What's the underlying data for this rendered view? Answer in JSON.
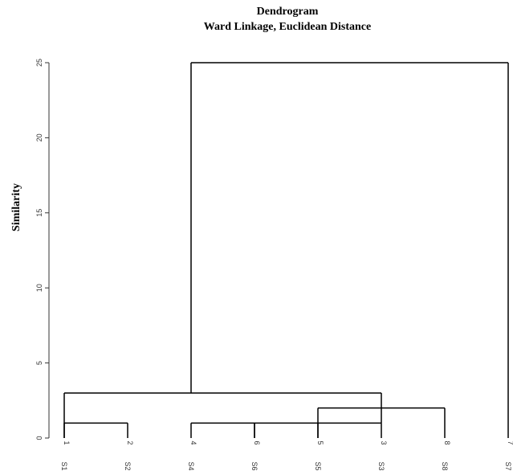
{
  "chart_data": {
    "type": "dendrogram",
    "title": "Dendrogram",
    "subtitle": "Ward Linkage, Euclidean Distance",
    "ylabel": "Similarity",
    "categories": [
      "S1",
      "S2",
      "S4",
      "S6",
      "S5",
      "S3",
      "S8",
      "S7"
    ],
    "leaf_ids": [
      1,
      2,
      4,
      6,
      5,
      3,
      8,
      7
    ],
    "links": [
      {
        "x": [
          0,
          1
        ],
        "height": 1,
        "from": [
          0,
          0
        ]
      },
      {
        "x": [
          2,
          3
        ],
        "height": 1,
        "from": [
          0,
          0
        ]
      },
      {
        "x": [
          3,
          4
        ],
        "height": 1,
        "from": [
          0,
          0
        ]
      },
      {
        "x": [
          4,
          5
        ],
        "height": 1,
        "from": [
          0,
          0
        ]
      },
      {
        "x": [
          4,
          6
        ],
        "height": 2,
        "from": [
          1,
          0
        ]
      },
      {
        "x": [
          0,
          5
        ],
        "height": 3,
        "from": [
          0,
          1
        ]
      },
      {
        "x": [
          2,
          7
        ],
        "height": 25,
        "from": [
          3,
          0
        ]
      }
    ],
    "color": "#000000",
    "ylim": [
      0,
      25
    ],
    "yticks": [
      0,
      5,
      10,
      15,
      20,
      25
    ]
  }
}
